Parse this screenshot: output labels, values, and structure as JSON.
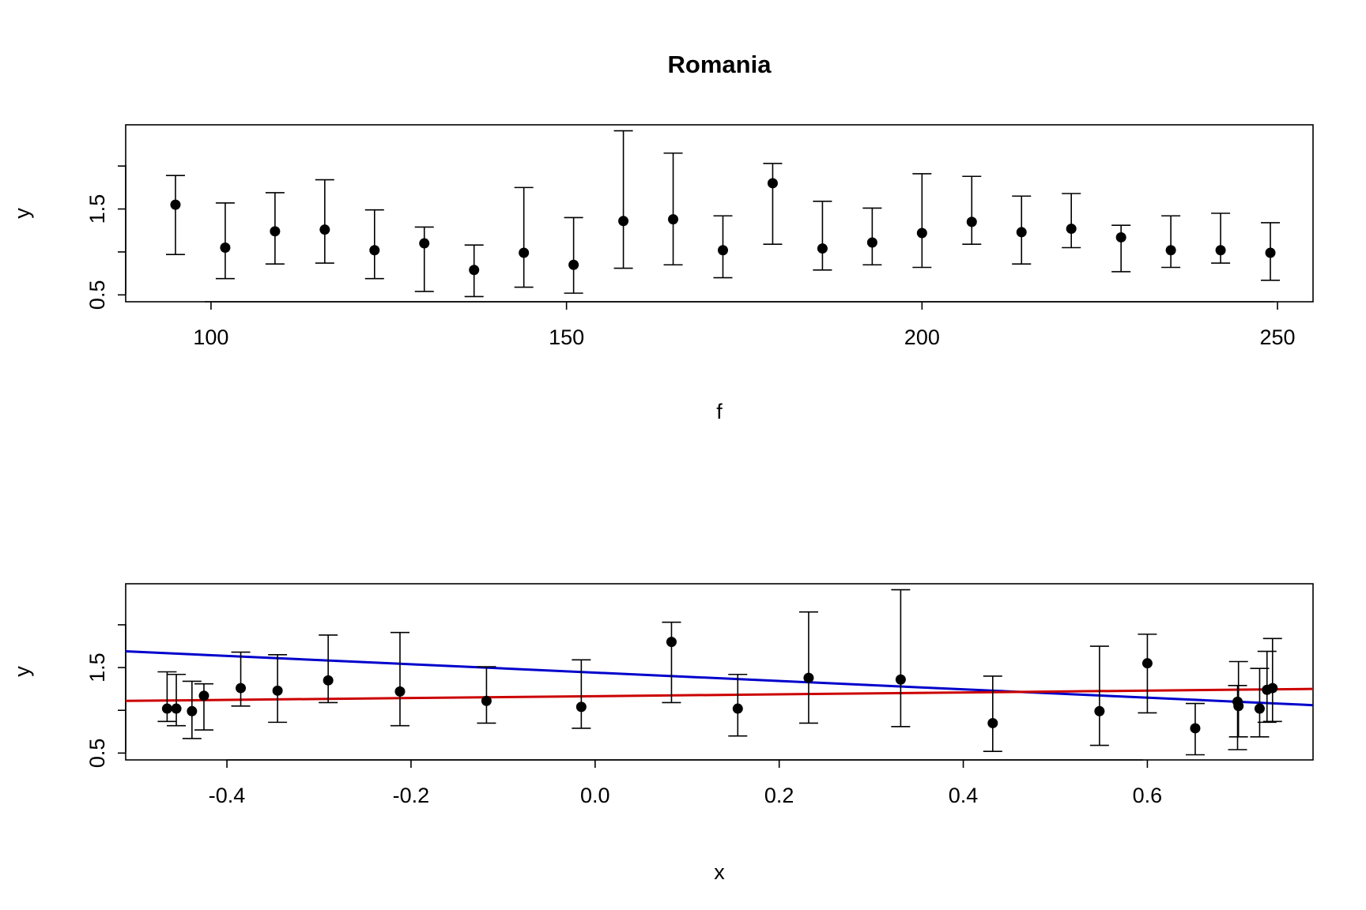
{
  "chart_data": [
    {
      "type": "scatter",
      "title": "Romania",
      "xlabel": "f",
      "ylabel": "y",
      "xlim": [
        88,
        255
      ],
      "ylim": [
        0.42,
        2.48
      ],
      "x_ticks": [
        100,
        150,
        200,
        250
      ],
      "x_tick_labels": [
        "100",
        "150",
        "200",
        "250"
      ],
      "y_ticks": [
        0.5,
        1.0,
        1.5,
        2.0
      ],
      "y_tick_labels": [
        "0.5",
        "",
        "1.5",
        ""
      ],
      "points": [
        {
          "x": 95,
          "y": 1.55,
          "lo": 0.97,
          "hi": 1.89
        },
        {
          "x": 102,
          "y": 1.05,
          "lo": 0.69,
          "hi": 1.57
        },
        {
          "x": 109,
          "y": 1.24,
          "lo": 0.86,
          "hi": 1.69
        },
        {
          "x": 116,
          "y": 1.26,
          "lo": 0.87,
          "hi": 1.84
        },
        {
          "x": 123,
          "y": 1.02,
          "lo": 0.69,
          "hi": 1.49
        },
        {
          "x": 130,
          "y": 1.1,
          "lo": 0.54,
          "hi": 1.29
        },
        {
          "x": 137,
          "y": 0.79,
          "lo": 0.48,
          "hi": 1.08
        },
        {
          "x": 144,
          "y": 0.99,
          "lo": 0.59,
          "hi": 1.75
        },
        {
          "x": 151,
          "y": 0.85,
          "lo": 0.52,
          "hi": 1.4
        },
        {
          "x": 158,
          "y": 1.36,
          "lo": 0.81,
          "hi": 2.41
        },
        {
          "x": 165,
          "y": 1.38,
          "lo": 0.85,
          "hi": 2.15
        },
        {
          "x": 172,
          "y": 1.02,
          "lo": 0.7,
          "hi": 1.42
        },
        {
          "x": 179,
          "y": 1.8,
          "lo": 1.09,
          "hi": 2.03
        },
        {
          "x": 186,
          "y": 1.04,
          "lo": 0.79,
          "hi": 1.59
        },
        {
          "x": 193,
          "y": 1.11,
          "lo": 0.85,
          "hi": 1.51
        },
        {
          "x": 200,
          "y": 1.22,
          "lo": 0.82,
          "hi": 1.91
        },
        {
          "x": 207,
          "y": 1.35,
          "lo": 1.09,
          "hi": 1.88
        },
        {
          "x": 214,
          "y": 1.23,
          "lo": 0.86,
          "hi": 1.65
        },
        {
          "x": 221,
          "y": 1.27,
          "lo": 1.05,
          "hi": 1.68
        },
        {
          "x": 228,
          "y": 1.17,
          "lo": 0.77,
          "hi": 1.31
        },
        {
          "x": 235,
          "y": 1.02,
          "lo": 0.82,
          "hi": 1.42
        },
        {
          "x": 242,
          "y": 1.02,
          "lo": 0.87,
          "hi": 1.45
        },
        {
          "x": 249,
          "y": 0.99,
          "lo": 0.67,
          "hi": 1.34
        }
      ]
    },
    {
      "type": "scatter",
      "title": "",
      "xlabel": "x",
      "ylabel": "y",
      "xlim": [
        -0.51,
        0.78
      ],
      "ylim": [
        0.42,
        2.48
      ],
      "x_ticks": [
        -0.4,
        -0.2,
        0.0,
        0.2,
        0.4,
        0.6
      ],
      "x_tick_labels": [
        "-0.4",
        "-0.2",
        "0.0",
        "0.2",
        "0.4",
        "0.6"
      ],
      "y_ticks": [
        0.5,
        1.0,
        1.5,
        2.0
      ],
      "y_tick_labels": [
        "0.5",
        "",
        "1.5",
        ""
      ],
      "points": [
        {
          "x": -0.465,
          "y": 1.02,
          "lo": 0.87,
          "hi": 1.45
        },
        {
          "x": -0.455,
          "y": 1.02,
          "lo": 0.82,
          "hi": 1.42
        },
        {
          "x": -0.438,
          "y": 0.99,
          "lo": 0.67,
          "hi": 1.34
        },
        {
          "x": -0.425,
          "y": 1.17,
          "lo": 0.77,
          "hi": 1.31
        },
        {
          "x": -0.385,
          "y": 1.26,
          "lo": 1.05,
          "hi": 1.68
        },
        {
          "x": -0.345,
          "y": 1.23,
          "lo": 0.86,
          "hi": 1.65
        },
        {
          "x": -0.29,
          "y": 1.35,
          "lo": 1.09,
          "hi": 1.88
        },
        {
          "x": -0.212,
          "y": 1.22,
          "lo": 0.82,
          "hi": 1.91
        },
        {
          "x": -0.118,
          "y": 1.11,
          "lo": 0.85,
          "hi": 1.51
        },
        {
          "x": -0.015,
          "y": 1.04,
          "lo": 0.79,
          "hi": 1.59
        },
        {
          "x": 0.083,
          "y": 1.8,
          "lo": 1.09,
          "hi": 2.03
        },
        {
          "x": 0.155,
          "y": 1.02,
          "lo": 0.7,
          "hi": 1.42
        },
        {
          "x": 0.232,
          "y": 1.38,
          "lo": 0.85,
          "hi": 2.15
        },
        {
          "x": 0.332,
          "y": 1.36,
          "lo": 0.81,
          "hi": 2.41
        },
        {
          "x": 0.432,
          "y": 0.85,
          "lo": 0.52,
          "hi": 1.4
        },
        {
          "x": 0.548,
          "y": 0.99,
          "lo": 0.59,
          "hi": 1.75
        },
        {
          "x": 0.6,
          "y": 1.55,
          "lo": 0.97,
          "hi": 1.89
        },
        {
          "x": 0.652,
          "y": 0.79,
          "lo": 0.48,
          "hi": 1.08
        },
        {
          "x": 0.698,
          "y": 1.1,
          "lo": 0.54,
          "hi": 1.29
        },
        {
          "x": 0.699,
          "y": 1.05,
          "lo": 0.69,
          "hi": 1.57
        },
        {
          "x": 0.722,
          "y": 1.02,
          "lo": 0.69,
          "hi": 1.49
        },
        {
          "x": 0.73,
          "y": 1.24,
          "lo": 0.86,
          "hi": 1.69
        },
        {
          "x": 0.736,
          "y": 1.26,
          "lo": 0.87,
          "hi": 1.84
        }
      ],
      "lines": [
        {
          "color": "#0000cc",
          "x": [
            -0.51,
            0.78
          ],
          "y": [
            1.69,
            1.06
          ]
        },
        {
          "color": "#cc0000",
          "x": [
            -0.51,
            0.78
          ],
          "y": [
            1.11,
            1.25
          ]
        }
      ]
    }
  ]
}
